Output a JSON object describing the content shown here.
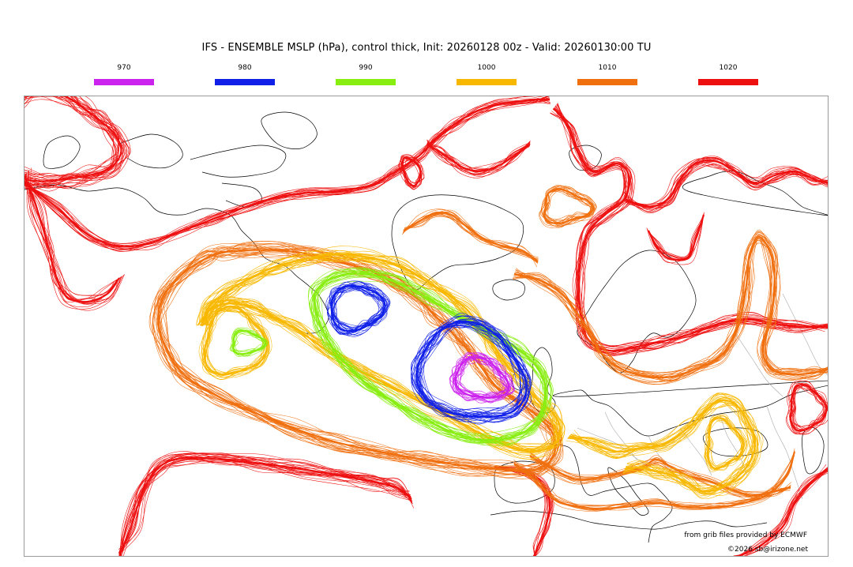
{
  "title": "IFS - ENSEMBLE MSLP (hPa), control thick, Init: 20260128 00z - Valid: 20260130:00 TU",
  "legend": [
    {
      "label": "970",
      "color": "#cc22ee"
    },
    {
      "label": "980",
      "color": "#1020e8"
    },
    {
      "label": "990",
      "color": "#88ee10"
    },
    {
      "label": "1000",
      "color": "#f8b800"
    },
    {
      "label": "1010",
      "color": "#f07010"
    },
    {
      "label": "1020",
      "color": "#ee1010"
    }
  ],
  "credits": {
    "source": "from grib files provided by ECMWF",
    "copyright": "©2026 sb@irizone.net"
  },
  "map": {
    "land_outline_color": "#000000",
    "border_color": "#aaaaaa"
  }
}
